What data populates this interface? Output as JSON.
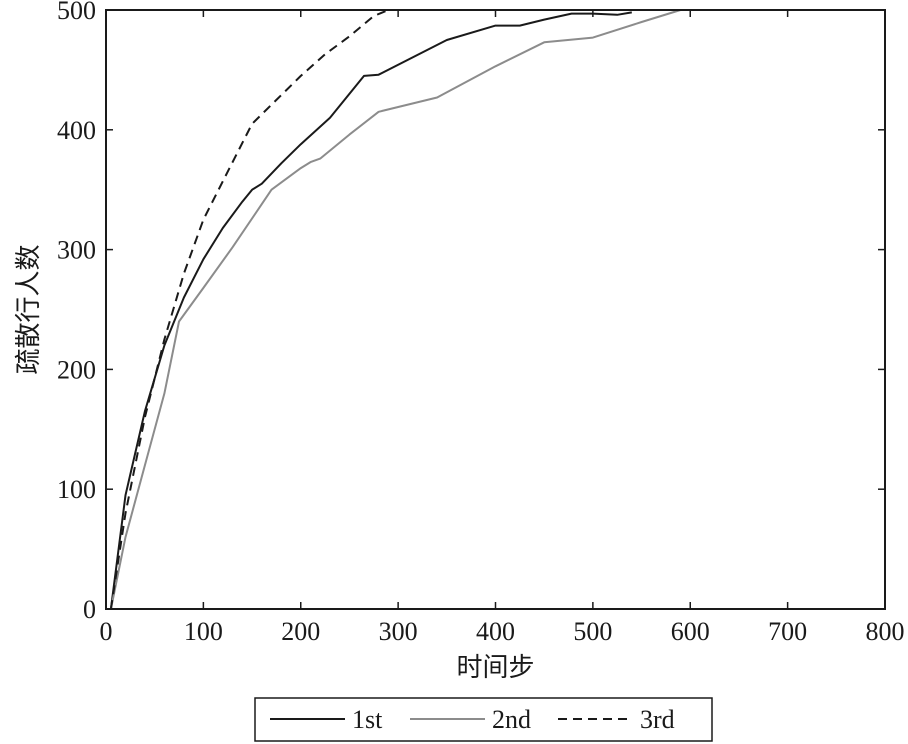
{
  "chart_data": {
    "type": "line",
    "title": "",
    "xlabel": "时间步",
    "ylabel": "疏散行人数",
    "xlim": [
      0,
      800
    ],
    "ylim": [
      0,
      500
    ],
    "xticks": [
      "0",
      "100",
      "200",
      "300",
      "400",
      "500",
      "600",
      "700",
      "800"
    ],
    "yticks": [
      "0",
      "100",
      "200",
      "300",
      "400",
      "500"
    ],
    "grid": false,
    "legend_position": "bottom-center",
    "series": [
      {
        "name": "1st",
        "color": "#1a1a1a",
        "dash": "solid",
        "x": [
          5,
          20,
          40,
          60,
          80,
          100,
          120,
          140,
          150,
          160,
          180,
          200,
          230,
          265,
          280,
          350,
          400,
          425,
          450,
          478,
          500,
          525,
          540
        ],
        "y": [
          0,
          95,
          165,
          220,
          260,
          292,
          318,
          340,
          350,
          355,
          372,
          388,
          410,
          445,
          446,
          475,
          487,
          487,
          492,
          497,
          497,
          496,
          498
        ]
      },
      {
        "name": "2nd",
        "color": "#8c8c8c",
        "dash": "solid",
        "x": [
          5,
          20,
          40,
          60,
          75,
          100,
          130,
          160,
          170,
          200,
          210,
          220,
          250,
          280,
          340,
          400,
          450,
          500,
          550,
          590
        ],
        "y": [
          0,
          60,
          120,
          180,
          240,
          268,
          302,
          338,
          350,
          368,
          373,
          376,
          396,
          415,
          427,
          453,
          473,
          477,
          490,
          500
        ]
      },
      {
        "name": "3rd",
        "color": "#1a1a1a",
        "dash": "dashed",
        "x": [
          5,
          20,
          40,
          60,
          80,
          100,
          125,
          150,
          175,
          200,
          225,
          250,
          275,
          290
        ],
        "y": [
          0,
          80,
          160,
          225,
          280,
          325,
          365,
          405,
          425,
          445,
          463,
          478,
          495,
          500
        ]
      }
    ]
  }
}
